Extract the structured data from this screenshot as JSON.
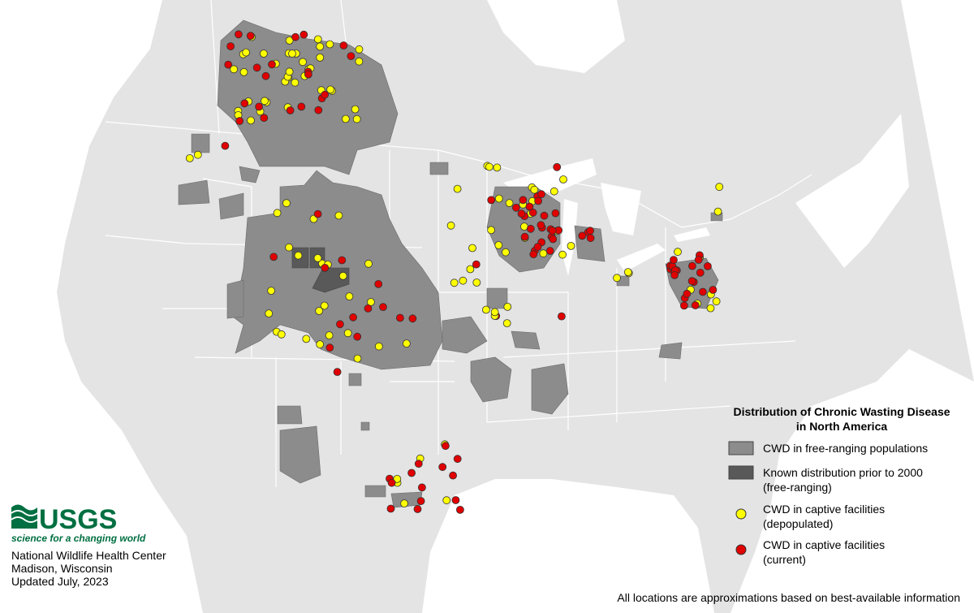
{
  "legend": {
    "title": [
      "Distribution of Chronic Wasting Disease",
      "in North America"
    ],
    "items": [
      {
        "label": [
          "CWD in free-ranging populations"
        ]
      },
      {
        "label": [
          "Known distribution prior to 2000",
          "(free-ranging)"
        ]
      },
      {
        "label": [
          "CWD in captive facilities",
          "(depopulated)"
        ]
      },
      {
        "label": [
          "CWD in captive facilities",
          "(current)"
        ]
      }
    ]
  },
  "logo": {
    "name": "USGS",
    "tagline": "science for a changing world"
  },
  "credits": [
    "National Wildlife Health Center",
    "Madison, Wisconsin",
    "Updated July, 2023"
  ],
  "note": "All locations are approximations based on best-available information"
}
